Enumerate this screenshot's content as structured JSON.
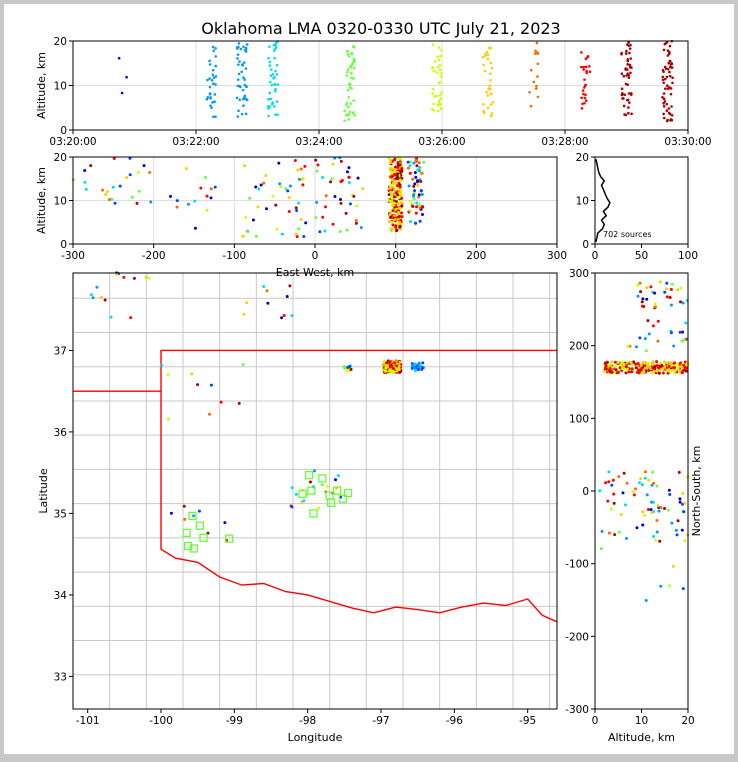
{
  "title": "Oklahoma LMA 0320-0330 UTC July 21, 2023",
  "colors": {
    "time_scale": [
      "#0000cc",
      "#0044ff",
      "#0099ff",
      "#00ddee",
      "#66ff44",
      "#ccff00",
      "#ffcc00",
      "#ff6600",
      "#ff0000",
      "#aa0000"
    ],
    "state_border": "#ff0000",
    "county_lines": "#c8c8c8",
    "station_marker": "#66ff33",
    "histogram": "#000000"
  },
  "chart_data": [
    {
      "id": "time-height",
      "type": "scatter",
      "xlabel": "",
      "ylabel": "Altitude, km",
      "xlim": [
        "03:20:00",
        "03:30:00"
      ],
      "ylim": [
        0,
        20
      ],
      "xticks": [
        "03:20:00",
        "03:22:00",
        "03:24:00",
        "03:26:00",
        "03:28:00",
        "03:30:00"
      ],
      "yticks": [
        0,
        10,
        20
      ],
      "clusters": [
        {
          "t": "03:20:50",
          "zmin": 6,
          "zmax": 17,
          "n": 3
        },
        {
          "t": "03:22:15",
          "zmin": 2,
          "zmax": 20,
          "n": 30
        },
        {
          "t": "03:22:45",
          "zmin": 3,
          "zmax": 20,
          "n": 45
        },
        {
          "t": "03:23:15",
          "zmin": 3,
          "zmax": 20,
          "n": 40
        },
        {
          "t": "03:24:30",
          "zmin": 2,
          "zmax": 19,
          "n": 45
        },
        {
          "t": "03:25:55",
          "zmin": 4,
          "zmax": 20,
          "n": 35
        },
        {
          "t": "03:26:45",
          "zmin": 3,
          "zmax": 19,
          "n": 30
        },
        {
          "t": "03:27:30",
          "zmin": 5,
          "zmax": 20,
          "n": 15
        },
        {
          "t": "03:28:20",
          "zmin": 4,
          "zmax": 20,
          "n": 25
        },
        {
          "t": "03:29:00",
          "zmin": 3,
          "zmax": 20,
          "n": 50
        },
        {
          "t": "03:29:40",
          "zmin": 2,
          "zmax": 20,
          "n": 60
        }
      ]
    },
    {
      "id": "east-west-altitude",
      "type": "scatter",
      "xlabel": "East-West, km",
      "ylabel": "Altitude, km",
      "xlim": [
        -300,
        300
      ],
      "ylim": [
        0,
        20
      ],
      "xticks": [
        -300,
        -200,
        -100,
        0,
        100,
        200,
        300
      ],
      "yticks": [
        0,
        10,
        20
      ],
      "clusters": [
        {
          "x": -280,
          "spread": 20,
          "zmin": 12,
          "zmax": 19,
          "n": 6
        },
        {
          "x": -230,
          "spread": 30,
          "zmin": 9,
          "zmax": 20,
          "n": 18
        },
        {
          "x": -150,
          "spread": 30,
          "zmin": 2,
          "zmax": 18,
          "n": 14
        },
        {
          "x": -50,
          "spread": 40,
          "zmin": 1,
          "zmax": 20,
          "n": 45
        },
        {
          "x": 30,
          "spread": 30,
          "zmin": 2,
          "zmax": 20,
          "n": 40
        },
        {
          "x": 100,
          "spread": 8,
          "zmin": 3,
          "zmax": 20,
          "n": 220
        },
        {
          "x": 125,
          "spread": 10,
          "zmin": 4,
          "zmax": 20,
          "n": 60
        }
      ]
    },
    {
      "id": "altitude-histogram",
      "type": "line",
      "xlabel": "",
      "ylabel": "",
      "xlim": [
        0,
        100
      ],
      "ylim": [
        0,
        20
      ],
      "xticks": [
        0,
        50,
        100
      ],
      "yticks": [
        0,
        10,
        20
      ],
      "annotation": "702 sources",
      "profile": [
        {
          "z": 0.5,
          "c": 1
        },
        {
          "z": 1.5,
          "c": 2
        },
        {
          "z": 2.5,
          "c": 3
        },
        {
          "z": 3.5,
          "c": 8
        },
        {
          "z": 4.5,
          "c": 10
        },
        {
          "z": 5.5,
          "c": 7
        },
        {
          "z": 6.5,
          "c": 12
        },
        {
          "z": 7.5,
          "c": 9
        },
        {
          "z": 8.5,
          "c": 14
        },
        {
          "z": 9.5,
          "c": 16
        },
        {
          "z": 10.5,
          "c": 13
        },
        {
          "z": 11.5,
          "c": 11
        },
        {
          "z": 12.5,
          "c": 9
        },
        {
          "z": 13.5,
          "c": 7
        },
        {
          "z": 14.5,
          "c": 10
        },
        {
          "z": 15.5,
          "c": 6
        },
        {
          "z": 16.5,
          "c": 4
        },
        {
          "z": 17.5,
          "c": 3
        },
        {
          "z": 18.5,
          "c": 2
        },
        {
          "z": 19.5,
          "c": 1
        }
      ]
    },
    {
      "id": "plan-view",
      "type": "scatter",
      "xlabel": "Longitude",
      "ylabel": "Latitude",
      "xlim": [
        -101.2,
        -94.6
      ],
      "ylim": [
        32.6,
        37.95
      ],
      "xticks": [
        -101,
        -100,
        -99,
        -98,
        -97,
        -96,
        -95
      ],
      "yticks": [
        33,
        34,
        35,
        36,
        37
      ],
      "stations": [
        {
          "lon": -99.57,
          "lat": 34.97
        },
        {
          "lon": -99.47,
          "lat": 34.85
        },
        {
          "lon": -99.65,
          "lat": 34.76
        },
        {
          "lon": -99.42,
          "lat": 34.7
        },
        {
          "lon": -99.55,
          "lat": 34.57
        },
        {
          "lon": -99.63,
          "lat": 34.6
        },
        {
          "lon": -99.07,
          "lat": 34.69
        },
        {
          "lon": -97.98,
          "lat": 35.47
        },
        {
          "lon": -97.8,
          "lat": 35.43
        },
        {
          "lon": -97.95,
          "lat": 35.28
        },
        {
          "lon": -98.07,
          "lat": 35.24
        },
        {
          "lon": -97.7,
          "lat": 35.22
        },
        {
          "lon": -97.6,
          "lat": 35.28
        },
        {
          "lon": -97.68,
          "lat": 35.13
        },
        {
          "lon": -97.52,
          "lat": 35.18
        },
        {
          "lon": -97.45,
          "lat": 35.25
        },
        {
          "lon": -97.92,
          "lat": 35.0
        }
      ],
      "clusters": [
        {
          "lon": -96.85,
          "lat": 36.8,
          "spread": 0.12,
          "n": 160
        },
        {
          "lon": -96.5,
          "lat": 36.8,
          "spread": 0.08,
          "n": 40
        },
        {
          "lon": -97.45,
          "lat": 36.78,
          "spread": 0.06,
          "n": 15
        },
        {
          "lon": -100.6,
          "lat": 37.7,
          "spread": 0.5,
          "n": 14
        },
        {
          "lon": -98.55,
          "lat": 37.6,
          "spread": 0.35,
          "n": 10
        },
        {
          "lon": -99.4,
          "lat": 36.5,
          "spread": 0.6,
          "n": 10
        },
        {
          "lon": -97.9,
          "lat": 35.3,
          "spread": 0.4,
          "n": 20
        },
        {
          "lon": -99.5,
          "lat": 34.9,
          "spread": 0.4,
          "n": 8
        }
      ]
    },
    {
      "id": "altitude-north-south",
      "type": "scatter",
      "xlabel": "Altitude, km",
      "ylabel": "North-South, km",
      "xlim": [
        0,
        20
      ],
      "ylim": [
        -300,
        300
      ],
      "xticks": [
        0,
        10,
        20
      ],
      "yticks": [
        -300,
        -200,
        -100,
        0,
        100,
        200,
        300
      ],
      "clusters": [
        {
          "y": 170,
          "spread": 8,
          "zmin": 2,
          "zmax": 20,
          "n": 230
        },
        {
          "y": 270,
          "spread": 20,
          "zmin": 9,
          "zmax": 20,
          "n": 30
        },
        {
          "y": 215,
          "spread": 25,
          "zmin": 6,
          "zmax": 20,
          "n": 20
        },
        {
          "y": 0,
          "spread": 30,
          "zmin": 1,
          "zmax": 20,
          "n": 50
        },
        {
          "y": -50,
          "spread": 30,
          "zmin": 1,
          "zmax": 20,
          "n": 25
        },
        {
          "y": -120,
          "spread": 40,
          "zmin": 10,
          "zmax": 20,
          "n": 5
        }
      ]
    }
  ]
}
